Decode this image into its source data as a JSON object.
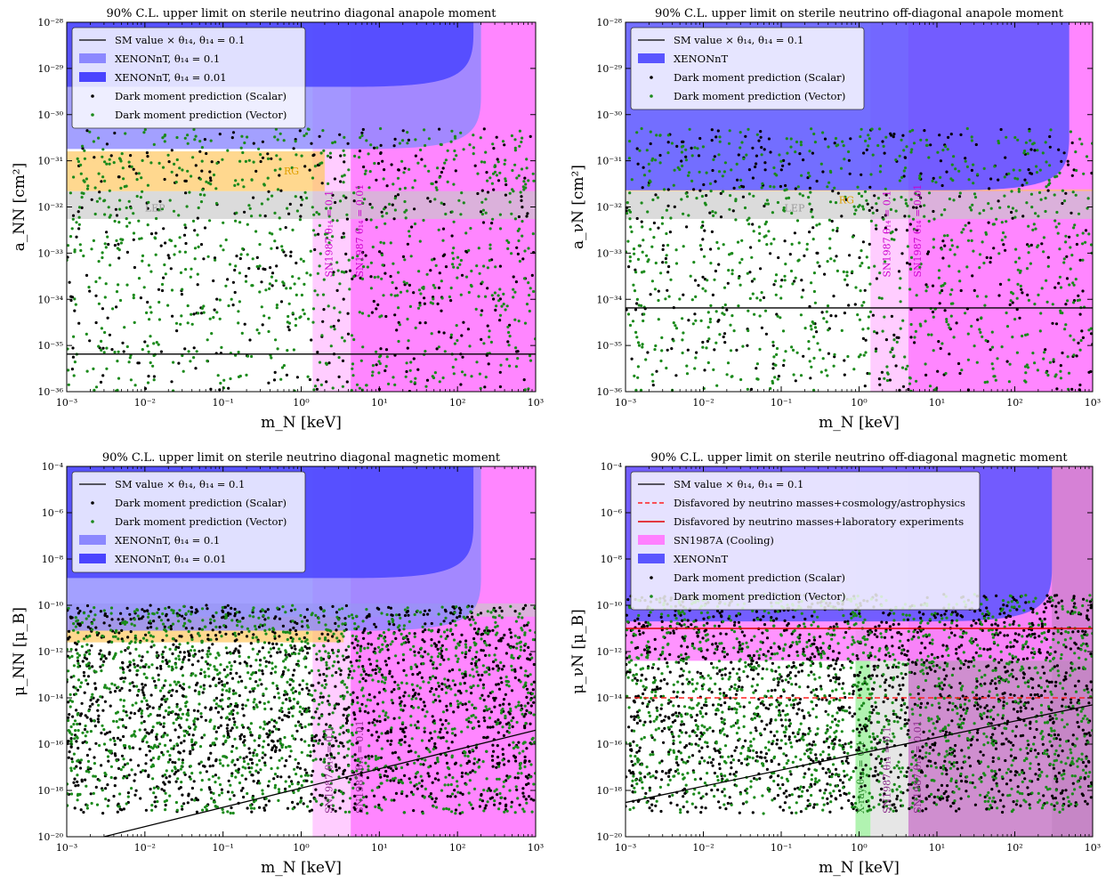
{
  "figure": {
    "x_axis": {
      "label": "m_N [keV]",
      "xlim": [
        0.001,
        1000
      ],
      "scale": "log",
      "ticks": [
        "10⁻³",
        "10⁻²",
        "10⁻¹",
        "10⁰",
        "10¹",
        "10²",
        "10³"
      ]
    },
    "colors": {
      "sm_line": "#000000",
      "xenon_01": "#8c88ff",
      "xenon_001": "#4a44ff",
      "xenon_single": "#5a55ff",
      "sn1987": "#ff80ff",
      "rg": "#ffc860",
      "lep": "#c8c8c8",
      "scalar_points": "#000000",
      "vector_points": "#1b8a1b",
      "dashed_red": "#ff2020",
      "solid_red": "#e00000",
      "xray": "#90ee90"
    }
  },
  "chart_data": [
    {
      "type": "scatter",
      "title": "90% C.L. upper limit on sterile neutrino diagonal anapole moment",
      "xlabel": "m_N [keV]",
      "ylabel": "a_NN [cm²]",
      "xlim": [
        0.001,
        1000
      ],
      "ylim": [
        1e-36,
        1e-28
      ],
      "yscale": "log",
      "y_ticks": [
        "10⁻³⁶",
        "10⁻³⁵",
        "10⁻³⁴",
        "10⁻³³",
        "10⁻³²",
        "10⁻³¹",
        "10⁻³⁰",
        "10⁻²⁹",
        "10⁻²⁸"
      ],
      "legend_position": "top-left",
      "legend": [
        "SM value × θ₁₄, θ₁₄ = 0.1",
        "XENONnT, θ₁₄ = 0.1",
        "XENONnT, θ₁₄ = 0.01",
        "Dark moment prediction (Scalar)",
        "Dark moment prediction (Vector)"
      ],
      "sm_line": {
        "x": [
          0.001,
          1000
        ],
        "y": [
          6.5e-36,
          6.5e-36
        ]
      },
      "regions": [
        {
          "name": "XENONnT θ₁₄ = 0.1",
          "lower_limit": 1.8e-31,
          "x_max": 200
        },
        {
          "name": "XENONnT θ₁₄ = 0.01",
          "lower_limit": 4e-30,
          "x_max": 160
        },
        {
          "name": "RG",
          "range": [
            2.2e-32,
            1.6e-31
          ],
          "x_max": 2
        },
        {
          "name": "LEP",
          "range": [
            5.5e-33,
            2.2e-32
          ]
        },
        {
          "name": "SN1987 θ₁₄ = 0.1",
          "x_min": 1.4
        },
        {
          "name": "SN1987 θ₁₄ = 0.01",
          "x_min": 4.3
        }
      ],
      "annotations": [
        "RG",
        "LEP",
        "SN1987 θ₁₄ = 0.1",
        "SN1987 θ₁₄ = 0.01"
      ],
      "scatter": {
        "y_range": [
          1e-36,
          5e-31
        ],
        "n_scalar": 420,
        "n_vector": 900
      }
    },
    {
      "type": "scatter",
      "title": "90% C.L. upper limit on sterile neutrino off-diagonal anapole moment",
      "xlabel": "m_N [keV]",
      "ylabel": "a_νN [cm²]",
      "xlim": [
        0.001,
        1000
      ],
      "ylim": [
        1e-36,
        1e-28
      ],
      "yscale": "log",
      "y_ticks": [
        "10⁻³⁶",
        "10⁻³⁵",
        "10⁻³⁴",
        "10⁻³³",
        "10⁻³²",
        "10⁻³¹",
        "10⁻³⁰",
        "10⁻²⁹",
        "10⁻²⁸"
      ],
      "legend_position": "top-left",
      "legend": [
        "SM value × θ₁₄, θ₁₄ = 0.1",
        "XENONnT",
        "Dark moment prediction (Scalar)",
        "Dark moment prediction (Vector)"
      ],
      "sm_line": {
        "x": [
          0.001,
          1000
        ],
        "y": [
          6.5e-35,
          6.5e-35
        ]
      },
      "regions": [
        {
          "name": "XENONnT",
          "lower_limit": 2.3e-32,
          "x_max": 500
        },
        {
          "name": "RG",
          "range": [
            2.2e-32,
            2.4e-32
          ]
        },
        {
          "name": "LEP",
          "range": [
            5.5e-33,
            2.2e-32
          ]
        },
        {
          "name": "SN1987 θ₁₄ = 0.1",
          "x_min": 1.4
        },
        {
          "name": "SN1987 θ₁₄ = 0.01",
          "x_min": 4.3
        }
      ],
      "annotations": [
        "RG",
        "LEP",
        "SN1987 θ₁₄ = 0.1",
        "SN1987 θ₁₄ = 0.01"
      ],
      "scatter": {
        "y_range": [
          1e-36,
          5e-31
        ],
        "n_scalar": 420,
        "n_vector": 900
      }
    },
    {
      "type": "scatter",
      "title": "90% C.L. upper limit on sterile neutrino diagonal magnetic moment",
      "xlabel": "m_N [keV]",
      "ylabel": "μ_NN [μ_B]",
      "xlim": [
        0.001,
        1000
      ],
      "ylim": [
        1e-20,
        0.0001
      ],
      "yscale": "log",
      "y_ticks": [
        "10⁻²⁰",
        "10⁻¹⁸",
        "10⁻¹⁶",
        "10⁻¹⁴",
        "10⁻¹²",
        "10⁻¹⁰",
        "10⁻⁸",
        "10⁻⁶",
        "10⁻⁴"
      ],
      "legend_position": "top-left",
      "legend": [
        "SM value × θ₁₄, θ₁₄ = 0.1",
        "Dark moment prediction (Scalar)",
        "Dark moment prediction (Vector)",
        "XENONnT, θ₁₄ = 0.1",
        "XENONnT, θ₁₄ = 0.01"
      ],
      "sm_line": {
        "x": [
          0.003,
          1000
        ],
        "y": [
          1e-20,
          4e-16
        ]
      },
      "regions": [
        {
          "name": "XENONnT θ₁₄ = 0.1",
          "lower_limit": 8e-12,
          "x_max": 200
        },
        {
          "name": "XENONnT θ₁₄ = 0.01",
          "lower_limit": 1.5e-09,
          "x_max": 160
        },
        {
          "name": "RG",
          "range": [
            2.5e-12,
            3.2e-11
          ],
          "x_max": 3.5
        },
        {
          "name": "LEP",
          "range": [
            3.2e-11,
            1.2e-10
          ]
        },
        {
          "name": "SN1987 θ₁₄ = 0.1",
          "x_min": 1.4
        },
        {
          "name": "SN1987 θ₁₄ = 0.01",
          "x_min": 4.3
        }
      ],
      "annotations": [
        "SN1987 θ₁₄ = 0.1",
        "SN1987 θ₁₄ = 0.01"
      ],
      "scatter": {
        "y_range": [
          1e-19,
          1e-10
        ],
        "n_scalar": 1600,
        "n_vector": 1500
      }
    },
    {
      "type": "scatter",
      "title": "90% C.L. upper limit on sterile neutrino off-diagonal magnetic moment",
      "xlabel": "m_N [keV]",
      "ylabel": "μ_νN [μ_B]",
      "xlim": [
        0.001,
        1000
      ],
      "ylim": [
        1e-20,
        0.0001
      ],
      "yscale": "log",
      "y_ticks": [
        "10⁻²⁰",
        "10⁻¹⁸",
        "10⁻¹⁶",
        "10⁻¹⁴",
        "10⁻¹²",
        "10⁻¹⁰",
        "10⁻⁸",
        "10⁻⁶",
        "10⁻⁴"
      ],
      "legend_position": "top-left",
      "legend": [
        "SM value × θ₁₄, θ₁₄ = 0.1",
        "Disfavored by neutrino masses+cosmology/astrophysics",
        "Disfavored by neutrino masses+laboratory experiments",
        "SN1987A (Cooling)",
        "XENONnT",
        "Dark moment prediction (Scalar)",
        "Dark moment prediction (Vector)"
      ],
      "sm_line": {
        "x": [
          0.001,
          1000
        ],
        "y": [
          3e-19,
          5e-15
        ]
      },
      "dashed_red": {
        "y": 1e-14
      },
      "solid_red": {
        "y": 1e-11
      },
      "regions": [
        {
          "name": "XENONnT",
          "lower_limit": 2e-11,
          "x_max": 300
        },
        {
          "name": "SN1987A (Cooling)",
          "range": [
            4e-13,
            0.0001
          ]
        },
        {
          "name": "X-ray",
          "x_range": [
            0.9,
            1.4
          ]
        },
        {
          "name": "SN1987 θ₁₄ = 0.1",
          "x_min": 1.4
        },
        {
          "name": "SN1987 θ₁₄ = 0.01",
          "x_min": 4.3
        },
        {
          "name": "upper-right band",
          "x_min": 300
        }
      ],
      "annotations": [
        "X-ray θ₁₄ = 0.1",
        "SN1987 θ₁₄ = 0.1",
        "SN1987 θ₁₄ = 0.01"
      ],
      "scatter": {
        "y_range": [
          1e-19,
          3e-10
        ],
        "n_scalar": 1700,
        "n_vector": 1500
      }
    }
  ]
}
